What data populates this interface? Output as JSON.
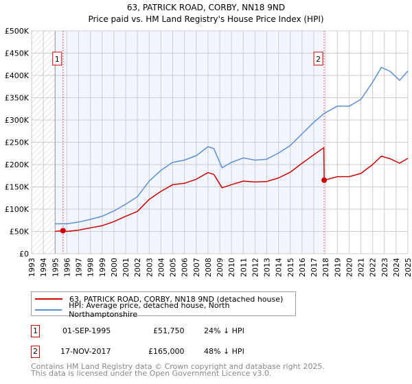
{
  "chart_data": {
    "type": "line",
    "title": "63, PATRICK ROAD, CORBY, NN18 9ND",
    "subtitle": "Price paid vs. HM Land Registry's House Price Index (HPI)",
    "xlim": [
      1993,
      2025
    ],
    "ylim": [
      0,
      500000
    ],
    "x_ticks": [
      "1993",
      "1994",
      "1995",
      "1996",
      "1997",
      "1998",
      "1999",
      "2000",
      "2001",
      "2002",
      "2003",
      "2004",
      "2005",
      "2006",
      "2007",
      "2008",
      "2009",
      "2010",
      "2011",
      "2012",
      "2013",
      "2014",
      "2015",
      "2016",
      "2017",
      "2018",
      "2019",
      "2020",
      "2021",
      "2022",
      "2023",
      "2024",
      "2025"
    ],
    "y_ticks": [
      {
        "value": 0,
        "label": "£0"
      },
      {
        "value": 50000,
        "label": "£50K"
      },
      {
        "value": 100000,
        "label": "£100K"
      },
      {
        "value": 150000,
        "label": "£150K"
      },
      {
        "value": 200000,
        "label": "£200K"
      },
      {
        "value": 250000,
        "label": "£250K"
      },
      {
        "value": 300000,
        "label": "£300K"
      },
      {
        "value": 350000,
        "label": "£350K"
      },
      {
        "value": 400000,
        "label": "£400K"
      },
      {
        "value": 450000,
        "label": "£450K"
      },
      {
        "value": 500000,
        "label": "£500K"
      }
    ],
    "grid": true,
    "series": [
      {
        "name": "63, PATRICK ROAD, CORBY, NN18 9ND (detached house)",
        "color": "#cc0000",
        "x": [
          1995.0,
          1995.67,
          1996,
          1997,
          1998,
          1999,
          2000,
          2001,
          2002,
          2003,
          2004,
          2005,
          2006,
          2007,
          2008,
          2008.5,
          2009.2,
          2010,
          2011,
          2012,
          2013,
          2014,
          2015,
          2016,
          2017,
          2017.85,
          2017.88,
          2019,
          2020,
          2021,
          2022,
          2022.75,
          2023.5,
          2024.3,
          2025
        ],
        "y": [
          50000,
          51750,
          50000,
          53000,
          58000,
          63000,
          72000,
          84000,
          95000,
          122000,
          140000,
          155000,
          158000,
          167000,
          182000,
          178000,
          148000,
          155000,
          163000,
          161000,
          162000,
          170000,
          183000,
          203000,
          222000,
          238000,
          165000,
          173000,
          173000,
          180000,
          200000,
          219000,
          213000,
          203000,
          214000
        ]
      },
      {
        "name": "HPI: Average price, detached house, North Northamptonshire",
        "color": "#5b8fd4",
        "x": [
          1995.0,
          1996,
          1997,
          1998,
          1999,
          2000,
          2001,
          2002,
          2003,
          2004,
          2005,
          2006,
          2007,
          2008,
          2008.5,
          2009.2,
          2010,
          2011,
          2012,
          2013,
          2014,
          2015,
          2016,
          2017,
          2017.88,
          2019,
          2020,
          2021,
          2022,
          2022.75,
          2023.5,
          2024.3,
          2025
        ],
        "y": [
          67000,
          67000,
          71000,
          77000,
          84000,
          96000,
          111000,
          128000,
          163000,
          187000,
          205000,
          210000,
          220000,
          240000,
          236000,
          193000,
          205000,
          215000,
          210000,
          212000,
          226000,
          243000,
          269000,
          295000,
          315000,
          331000,
          331000,
          346000,
          385000,
          418000,
          409000,
          389000,
          410000
        ]
      }
    ],
    "shaded_ranges": [
      {
        "from": 1995,
        "to": 2017.88
      }
    ],
    "hatched_range": {
      "from": 1993,
      "to": 1995
    },
    "annotations": [
      {
        "label": "1",
        "x": 1995.67,
        "y": 51750
      },
      {
        "label": "2",
        "x": 2017.88,
        "y": 165000
      }
    ],
    "legend_position": "bottom"
  },
  "legend": [
    {
      "label": "63, PATRICK ROAD, CORBY, NN18 9ND (detached house)",
      "color": "#cc0000"
    },
    {
      "label": "HPI: Average price, detached house, North Northamptonshire",
      "color": "#5b8fd4"
    }
  ],
  "transactions": [
    {
      "num": "1",
      "date": "01-SEP-1995",
      "price": "£51,750",
      "hpi": "24% ↓ HPI"
    },
    {
      "num": "2",
      "date": "17-NOV-2017",
      "price": "£165,000",
      "hpi": "48% ↓ HPI"
    }
  ],
  "footer": {
    "line1": "Contains HM Land Registry data © Crown copyright and database right 2025.",
    "line2": "This data is licensed under the Open Government Licence v3.0."
  }
}
